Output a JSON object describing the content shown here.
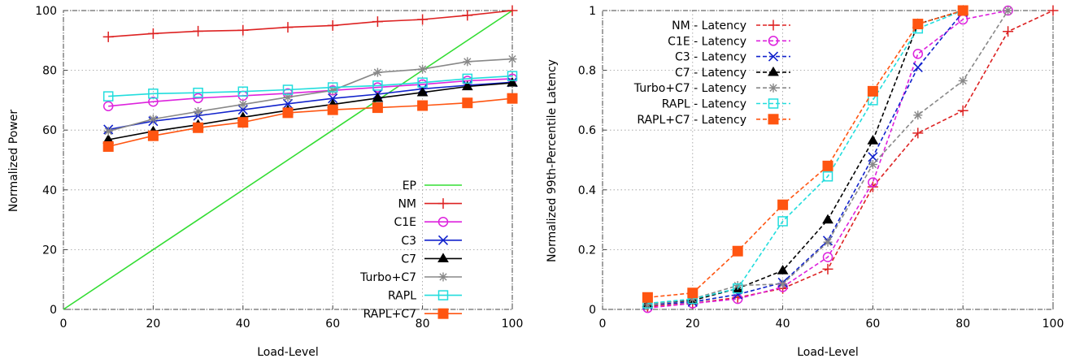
{
  "chart_data": [
    {
      "type": "line",
      "xlabel": "Load-Level",
      "ylabel": "Normalized Power",
      "xlim": [
        0,
        100
      ],
      "ylim": [
        0,
        100
      ],
      "xticks": [
        0,
        20,
        40,
        60,
        80,
        100
      ],
      "yticks": [
        0,
        20,
        40,
        60,
        80,
        100
      ],
      "grid": true,
      "legend_position": "bottom-right",
      "series": [
        {
          "name": "EP",
          "color": "#33dd33",
          "marker": "none",
          "dash": "solid",
          "x": [
            0,
            100
          ],
          "y": [
            0,
            100
          ]
        },
        {
          "name": "NM",
          "color": "#dd2222",
          "marker": "plus",
          "dash": "solid",
          "x": [
            10,
            20,
            30,
            40,
            50,
            60,
            70,
            80,
            90,
            100
          ],
          "y": [
            91.2,
            92.3,
            93.1,
            93.4,
            94.4,
            95.0,
            96.3,
            97.0,
            98.4,
            100
          ]
        },
        {
          "name": "C1E",
          "color": "#dd22dd",
          "marker": "circle",
          "dash": "solid",
          "x": [
            10,
            20,
            30,
            40,
            50,
            60,
            70,
            80,
            90,
            100
          ],
          "y": [
            68.0,
            69.5,
            70.7,
            71.5,
            72.3,
            73.3,
            74.3,
            75.3,
            76.5,
            77.2
          ]
        },
        {
          "name": "C3",
          "color": "#1122cc",
          "marker": "x",
          "dash": "solid",
          "x": [
            10,
            20,
            30,
            40,
            50,
            60,
            70,
            80,
            90,
            100
          ],
          "y": [
            60.2,
            63.0,
            64.8,
            66.8,
            68.8,
            70.6,
            72.0,
            73.8,
            75.0,
            76.0
          ]
        },
        {
          "name": "C7",
          "color": "#000000",
          "marker": "triangle",
          "dash": "solid",
          "x": [
            10,
            20,
            30,
            40,
            50,
            60,
            70,
            80,
            90,
            100
          ],
          "y": [
            56.8,
            59.6,
            61.8,
            64.3,
            66.6,
            68.6,
            70.7,
            72.6,
            74.6,
            75.8
          ]
        },
        {
          "name": "Turbo+C7",
          "color": "#888888",
          "marker": "star",
          "dash": "solid",
          "x": [
            10,
            20,
            30,
            40,
            50,
            60,
            70,
            80,
            90,
            100
          ],
          "y": [
            59.6,
            63.7,
            66.2,
            68.6,
            71.0,
            73.3,
            79.3,
            80.4,
            82.9,
            83.8
          ]
        },
        {
          "name": "RAPL",
          "color": "#22dddd",
          "marker": "square-open",
          "dash": "solid",
          "x": [
            10,
            20,
            30,
            40,
            50,
            60,
            70,
            80,
            90,
            100
          ],
          "y": [
            71.3,
            72.2,
            72.5,
            72.9,
            73.5,
            74.3,
            74.9,
            75.9,
            77.2,
            78.1
          ]
        },
        {
          "name": "RAPL+C7",
          "color": "#ff5511",
          "marker": "square-filled",
          "dash": "solid",
          "x": [
            10,
            20,
            30,
            40,
            50,
            60,
            70,
            80,
            90,
            100
          ],
          "y": [
            54.5,
            58.1,
            60.8,
            62.6,
            65.8,
            66.8,
            67.5,
            68.2,
            69.1,
            70.6
          ]
        }
      ]
    },
    {
      "type": "line",
      "xlabel": "Load-Level",
      "ylabel": "Normalized 99th-Percentile Latency",
      "xlim": [
        0,
        100
      ],
      "ylim": [
        0,
        1
      ],
      "xticks": [
        0,
        20,
        40,
        60,
        80,
        100
      ],
      "yticks": [
        0,
        0.2,
        0.4,
        0.6,
        0.8,
        1
      ],
      "ytick_labels": [
        "0",
        "0.2",
        "0.4",
        "0.6",
        "0.8",
        "1"
      ],
      "grid": true,
      "legend_position": "top-left",
      "series": [
        {
          "name": "NM - Latency",
          "color": "#dd2222",
          "marker": "plus",
          "dash": "dashed",
          "x": [
            10,
            20,
            30,
            40,
            50,
            60,
            70,
            80,
            90,
            100
          ],
          "y": [
            0.01,
            0.02,
            0.04,
            0.07,
            0.135,
            0.41,
            0.59,
            0.665,
            0.93,
            1.0
          ]
        },
        {
          "name": "C1E - Latency",
          "color": "#dd22dd",
          "marker": "circle",
          "dash": "dashed",
          "x": [
            10,
            20,
            30,
            40,
            50,
            60,
            70,
            80,
            90
          ],
          "y": [
            0.005,
            0.02,
            0.035,
            0.075,
            0.175,
            0.425,
            0.855,
            0.97,
            1.0
          ]
        },
        {
          "name": "C3 - Latency",
          "color": "#1122cc",
          "marker": "x",
          "dash": "dashed",
          "x": [
            10,
            20,
            30,
            40,
            50,
            60,
            70,
            80
          ],
          "y": [
            0.015,
            0.025,
            0.05,
            0.09,
            0.23,
            0.51,
            0.81,
            0.995
          ]
        },
        {
          "name": "C7 - Latency",
          "color": "#000000",
          "marker": "triangle",
          "dash": "dashed",
          "x": [
            10,
            20,
            30,
            40,
            50,
            60,
            70,
            80
          ],
          "y": [
            0.02,
            0.03,
            0.07,
            0.13,
            0.3,
            0.565,
            0.955,
            1.0
          ]
        },
        {
          "name": "Turbo+C7 - Latency",
          "color": "#888888",
          "marker": "star",
          "dash": "dashed",
          "x": [
            10,
            20,
            30,
            40,
            50,
            60,
            70,
            80,
            90
          ],
          "y": [
            0.015,
            0.035,
            0.08,
            0.085,
            0.225,
            0.485,
            0.65,
            0.765,
            1.0
          ]
        },
        {
          "name": "RAPL - Latency",
          "color": "#22dddd",
          "marker": "square-open",
          "dash": "dashed",
          "x": [
            10,
            20,
            30,
            40,
            50,
            60,
            70,
            80
          ],
          "y": [
            0.02,
            0.035,
            0.07,
            0.295,
            0.445,
            0.7,
            0.94,
            1.0
          ]
        },
        {
          "name": "RAPL+C7 - Latency",
          "color": "#ff5511",
          "marker": "square-filled",
          "dash": "dashed",
          "x": [
            10,
            20,
            30,
            40,
            50,
            60,
            70,
            80
          ],
          "y": [
            0.04,
            0.055,
            0.195,
            0.35,
            0.48,
            0.73,
            0.955,
            1.0
          ]
        }
      ]
    }
  ]
}
